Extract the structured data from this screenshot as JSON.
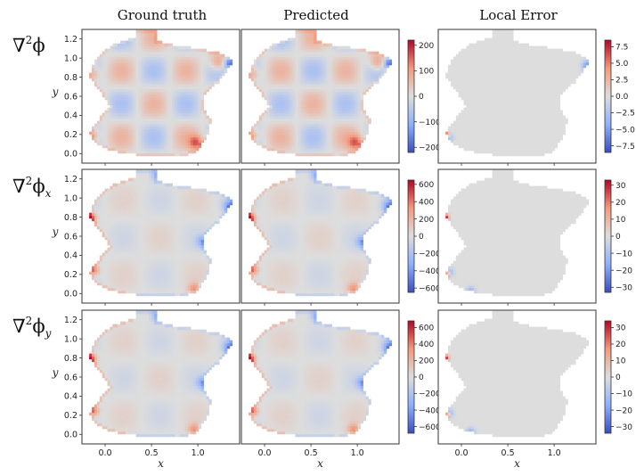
{
  "figure": {
    "column_titles": [
      "Ground truth",
      "Predicted",
      "Local Error"
    ],
    "row_labels": [
      {
        "base": "∇",
        "sup": "2",
        "sym": "ϕ",
        "sub": ""
      },
      {
        "base": "∇",
        "sup": "2",
        "sym": "ϕ",
        "sub": "x"
      },
      {
        "base": "∇",
        "sup": "2",
        "sym": "ϕ",
        "sub": "y"
      }
    ],
    "xlabel": "x",
    "ylabel": "y"
  },
  "colors": {
    "cold": "#3b4cc0",
    "neutral": "#dddddd",
    "hot": "#b40426",
    "frame": "#333333"
  },
  "chart_data": [
    {
      "type": "heatmap",
      "row": 0,
      "col": 0,
      "title": "Ground truth",
      "field": "Laplacian of phi",
      "xlim": [
        -0.25,
        1.45
      ],
      "ylim": [
        -0.1,
        1.3
      ],
      "xticks": [
        0.0,
        0.5,
        1.0
      ],
      "xticklabels": [
        "0.0",
        "0.5",
        "1.0"
      ],
      "yticks": [
        0.0,
        0.2,
        0.4,
        0.6,
        0.8,
        1.0,
        1.2
      ],
      "yticklabels": [
        "0.0",
        "0.2",
        "0.4",
        "0.6",
        "0.8",
        "1.0",
        "1.2"
      ],
      "vmin": -220,
      "vmax": 220,
      "colorbar": false
    },
    {
      "type": "heatmap",
      "row": 0,
      "col": 1,
      "title": "Predicted",
      "field": "Laplacian of phi",
      "xlim": [
        -0.25,
        1.45
      ],
      "ylim": [
        -0.1,
        1.3
      ],
      "xticks": [
        0.0,
        0.5,
        1.0
      ],
      "xticklabels": [
        "0.0",
        "0.5",
        "1.0"
      ],
      "yticks": [],
      "yticklabels": [],
      "vmin": -220,
      "vmax": 220,
      "colorbar": true,
      "cbticks": [
        200,
        100,
        0,
        -100,
        -200
      ],
      "cbticklabels": [
        "200",
        "100",
        "0",
        "−100",
        "−200"
      ]
    },
    {
      "type": "heatmap",
      "row": 0,
      "col": 2,
      "title": "Local Error",
      "field": "error",
      "xlim": [
        -0.25,
        1.45
      ],
      "ylim": [
        -0.1,
        1.3
      ],
      "xticks": [
        0.0,
        0.5,
        1.0
      ],
      "xticklabels": [
        "0.0",
        "0.5",
        "1.0"
      ],
      "yticks": [],
      "yticklabels": [],
      "vmin": -8.5,
      "vmax": 8.5,
      "colorbar": true,
      "cbticks": [
        7.5,
        5.0,
        2.5,
        0.0,
        -2.5,
        -5.0,
        -7.5
      ],
      "cbticklabels": [
        "7.5",
        "5.0",
        "2.5",
        "0.0",
        "−2.5",
        "−5.0",
        "−7.5"
      ]
    },
    {
      "type": "heatmap",
      "row": 1,
      "col": 0,
      "title": "Ground truth",
      "field": "Laplacian of phi_x",
      "xlim": [
        -0.25,
        1.45
      ],
      "ylim": [
        -0.1,
        1.3
      ],
      "xticks": [
        0.0,
        0.5,
        1.0
      ],
      "xticklabels": [
        "0.0",
        "0.5",
        "1.0"
      ],
      "yticks": [
        0.0,
        0.2,
        0.4,
        0.6,
        0.8,
        1.0,
        1.2
      ],
      "yticklabels": [
        "0.0",
        "0.2",
        "0.4",
        "0.6",
        "0.8",
        "1.0",
        "1.2"
      ],
      "vmin": -650,
      "vmax": 650,
      "colorbar": false
    },
    {
      "type": "heatmap",
      "row": 1,
      "col": 1,
      "title": "Predicted",
      "field": "Laplacian of phi_x",
      "xlim": [
        -0.25,
        1.45
      ],
      "ylim": [
        -0.1,
        1.3
      ],
      "xticks": [
        0.0,
        0.5,
        1.0
      ],
      "xticklabels": [
        "0.0",
        "0.5",
        "1.0"
      ],
      "yticks": [],
      "yticklabels": [],
      "vmin": -650,
      "vmax": 650,
      "colorbar": true,
      "cbticks": [
        600,
        400,
        200,
        0,
        -200,
        -400,
        -600
      ],
      "cbticklabels": [
        "600",
        "400",
        "200",
        "0",
        "−200",
        "−400",
        "−600"
      ]
    },
    {
      "type": "heatmap",
      "row": 1,
      "col": 2,
      "title": "Local Error",
      "field": "error",
      "xlim": [
        -0.25,
        1.45
      ],
      "ylim": [
        -0.1,
        1.3
      ],
      "xticks": [
        0.0,
        0.5,
        1.0
      ],
      "xticklabels": [
        "0.0",
        "0.5",
        "1.0"
      ],
      "yticks": [],
      "yticklabels": [],
      "vmin": -33,
      "vmax": 33,
      "colorbar": true,
      "cbticks": [
        30,
        20,
        10,
        0,
        -10,
        -20,
        -30
      ],
      "cbticklabels": [
        "30",
        "20",
        "10",
        "0",
        "−10",
        "−20",
        "−30"
      ]
    },
    {
      "type": "heatmap",
      "row": 2,
      "col": 0,
      "title": "Ground truth",
      "field": "Laplacian of phi_y",
      "xlim": [
        -0.25,
        1.45
      ],
      "ylim": [
        -0.1,
        1.3
      ],
      "xticks": [
        0.0,
        0.5,
        1.0
      ],
      "xticklabels": [
        "0.0",
        "0.5",
        "1.0"
      ],
      "yticks": [
        0.0,
        0.2,
        0.4,
        0.6,
        0.8,
        1.0,
        1.2
      ],
      "yticklabels": [
        "0.0",
        "0.2",
        "0.4",
        "0.6",
        "0.8",
        "1.0",
        "1.2"
      ],
      "vmin": -680,
      "vmax": 680,
      "colorbar": false
    },
    {
      "type": "heatmap",
      "row": 2,
      "col": 1,
      "title": "Predicted",
      "field": "Laplacian of phi_y",
      "xlim": [
        -0.25,
        1.45
      ],
      "ylim": [
        -0.1,
        1.3
      ],
      "xticks": [
        0.0,
        0.5,
        1.0
      ],
      "xticklabels": [
        "0.0",
        "0.5",
        "1.0"
      ],
      "yticks": [],
      "yticklabels": [],
      "vmin": -680,
      "vmax": 680,
      "colorbar": true,
      "cbticks": [
        600,
        400,
        200,
        0,
        -200,
        -400,
        -600
      ],
      "cbticklabels": [
        "600",
        "400",
        "200",
        "0",
        "−200",
        "−400",
        "−600"
      ]
    },
    {
      "type": "heatmap",
      "row": 2,
      "col": 2,
      "title": "Local Error",
      "field": "error",
      "xlim": [
        -0.25,
        1.45
      ],
      "ylim": [
        -0.1,
        1.3
      ],
      "xticks": [
        0.0,
        0.5,
        1.0
      ],
      "xticklabels": [
        "0.0",
        "0.5",
        "1.0"
      ],
      "yticks": [],
      "yticklabels": [],
      "vmin": -34,
      "vmax": 34,
      "colorbar": true,
      "cbticks": [
        30,
        20,
        10,
        0,
        -10,
        -20,
        -30
      ],
      "cbticklabels": [
        "30",
        "20",
        "10",
        "0",
        "−10",
        "−20",
        "−30"
      ]
    }
  ]
}
